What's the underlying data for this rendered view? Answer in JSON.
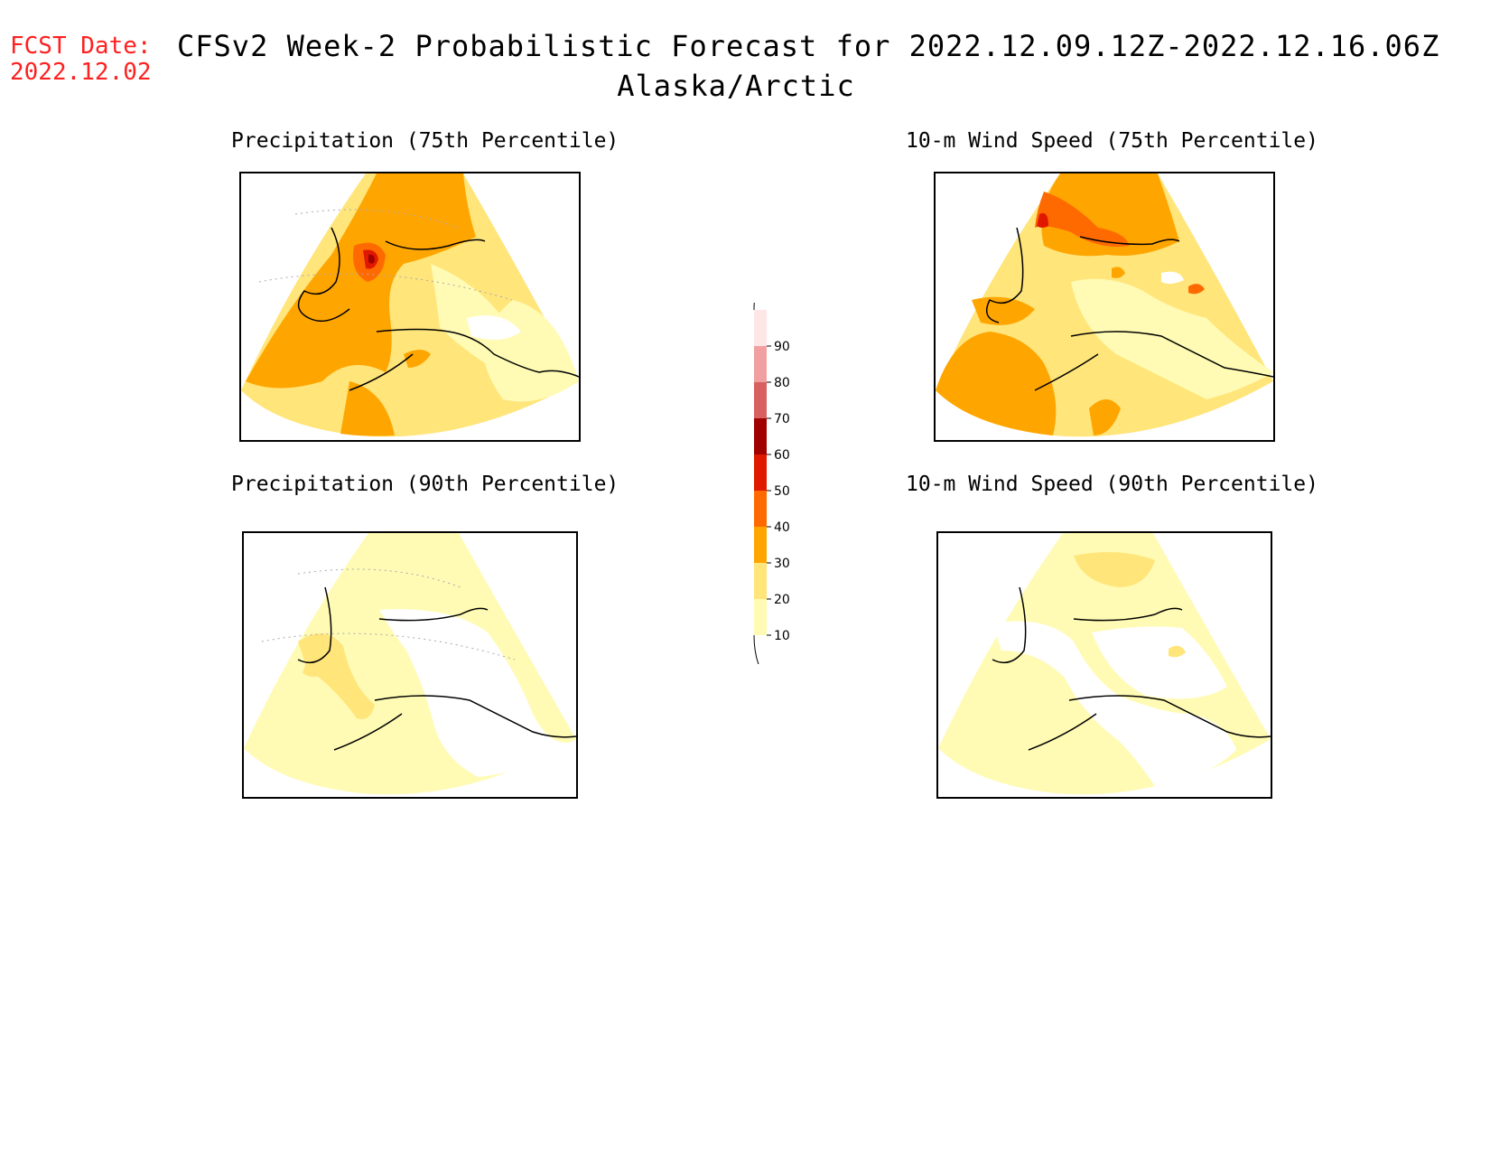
{
  "header": {
    "fcst_label": "FCST Date:",
    "fcst_date": "2022.12.02",
    "title": "CFSv2 Week-2 Probabilistic Forecast for 2022.12.09.12Z-2022.12.16.06Z",
    "subtitle": "Alaska/Arctic"
  },
  "panels": [
    {
      "title": "Precipitation (75th Percentile)"
    },
    {
      "title": "10-m Wind Speed (75th Percentile)"
    },
    {
      "title": "Precipitation (90th Percentile)"
    },
    {
      "title": "10-m Wind Speed (90th Percentile)"
    }
  ],
  "colorbar": {
    "levels": [
      10,
      20,
      30,
      40,
      50,
      60,
      70,
      80,
      90
    ],
    "level_labels": [
      "10",
      "20",
      "30",
      "40",
      "50",
      "60",
      "70",
      "80",
      "90"
    ],
    "colors": [
      "#fffbb4",
      "#ffe57a",
      "#ffa500",
      "#ff6a00",
      "#e01800",
      "#a00000",
      "#d86060",
      "#f0a0a0",
      "#ffe6e6"
    ]
  }
}
